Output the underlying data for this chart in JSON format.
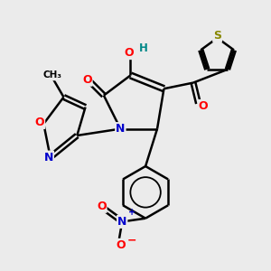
{
  "bg_color": "#ebebeb",
  "atom_colors": {
    "C": "#000000",
    "N": "#0000cc",
    "O": "#ff0000",
    "S": "#888800",
    "H": "#008888"
  },
  "bond_color": "#000000",
  "bond_width": 1.8
}
